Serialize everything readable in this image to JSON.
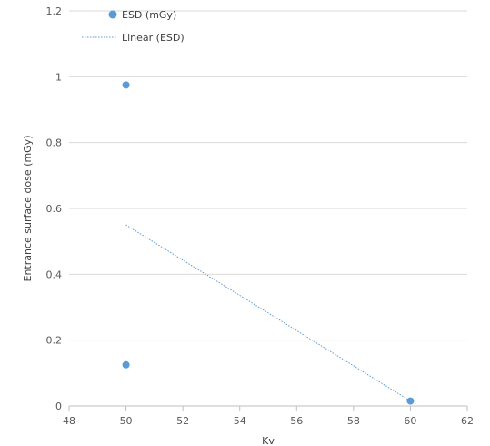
{
  "chart_data": {
    "type": "scatter",
    "xlabel": "Kv",
    "ylabel": "Entrance surface dose (mGy)",
    "xlim": [
      48,
      62
    ],
    "ylim": [
      0,
      1.2
    ],
    "xticks": [
      48,
      50,
      52,
      54,
      56,
      58,
      60,
      62
    ],
    "yticks": [
      {
        "value": 0,
        "label": "0"
      },
      {
        "value": 0.2,
        "label": "0.2"
      },
      {
        "value": 0.4,
        "label": "0.4"
      },
      {
        "value": 0.6,
        "label": "0.6"
      },
      {
        "value": 0.8,
        "label": "0.8"
      },
      {
        "value": 1.0,
        "label": "1"
      },
      {
        "value": 1.2,
        "label": "1.2"
      }
    ],
    "grid": "horizontal",
    "series": [
      {
        "name": "ESD (mGy)",
        "kind": "scatter",
        "color": "#5b9bd5",
        "points": [
          {
            "x": 50,
            "y": 0.975
          },
          {
            "x": 50,
            "y": 0.125
          },
          {
            "x": 60,
            "y": 0.015
          }
        ]
      },
      {
        "name": "Linear (ESD)",
        "kind": "trendline",
        "color": "#5b9bd5",
        "points": [
          {
            "x": 50,
            "y": 0.55
          },
          {
            "x": 60,
            "y": 0.015
          }
        ]
      }
    ],
    "legend": "top-left"
  }
}
